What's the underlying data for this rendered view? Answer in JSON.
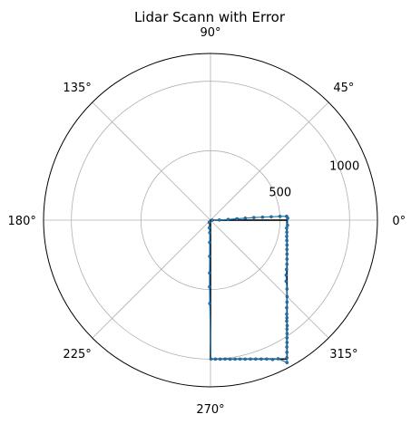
{
  "chart_data": {
    "type": "scatter",
    "projection": "polar",
    "title": "Lidar Scann with Error",
    "angle_unit": "degrees",
    "theta_ticks": [
      0,
      45,
      90,
      135,
      180,
      225,
      270,
      315
    ],
    "theta_tick_labels": [
      "0°",
      "45°",
      "90°",
      "135°",
      "180°",
      "225°",
      "270°",
      "315°"
    ],
    "r_ticks": [
      500,
      1000
    ],
    "r_tick_labels": [
      "500",
      "1000"
    ],
    "rlim": [
      0,
      1200
    ],
    "grid": true,
    "reference_shape": {
      "name": "",
      "color": "#000000",
      "x_range": [
        0,
        550
      ],
      "y_range": [
        -1000,
        0
      ]
    },
    "scan_color": "#1f77b4",
    "scan_points": [
      [
        0.9,
        12
      ],
      [
        1,
        64
      ],
      [
        2.5,
        127
      ],
      [
        3,
        190
      ],
      [
        3.3,
        250
      ],
      [
        3.5,
        312
      ],
      [
        3.3,
        375
      ],
      [
        3.2,
        437
      ],
      [
        3.1,
        500
      ],
      [
        2.9,
        548
      ],
      [
        1.5,
        555
      ],
      [
        -3.8,
        555
      ],
      [
        -6,
        550
      ],
      [
        -9,
        555
      ],
      [
        -12,
        560
      ],
      [
        -15,
        568
      ],
      [
        -18,
        578
      ],
      [
        -21,
        588
      ],
      [
        -24,
        602
      ],
      [
        -27,
        617
      ],
      [
        -30,
        634
      ],
      [
        -33,
        652
      ],
      [
        -36,
        672
      ],
      [
        -39,
        700
      ],
      [
        -42,
        740
      ],
      [
        -45,
        778
      ],
      [
        -47,
        806
      ],
      [
        -49,
        835
      ],
      [
        -51,
        870
      ],
      [
        -52,
        892
      ],
      [
        -53,
        910
      ],
      [
        -54,
        938
      ],
      [
        -55,
        958
      ],
      [
        -56,
        984
      ],
      [
        -57,
        1010
      ],
      [
        -58,
        1038
      ],
      [
        -59,
        1065
      ],
      [
        -60,
        1098
      ],
      [
        -61,
        1132
      ],
      [
        -61.8,
        1163
      ],
      [
        -64,
        1110
      ],
      [
        -66,
        1098
      ],
      [
        -68,
        1078
      ],
      [
        -70,
        1064
      ],
      [
        -72,
        1051
      ],
      [
        -74,
        1040
      ],
      [
        -76,
        1031
      ],
      [
        -78,
        1022
      ],
      [
        -80,
        1016
      ],
      [
        -82,
        1011
      ],
      [
        -84,
        1005
      ],
      [
        -86,
        1003
      ],
      [
        -88,
        1001
      ],
      [
        -89.8,
        1000
      ],
      [
        -90.5,
        600
      ],
      [
        -90.8,
        480
      ],
      [
        -91,
        380
      ],
      [
        -91.3,
        260
      ],
      [
        -92,
        160
      ],
      [
        -93.5,
        90
      ],
      [
        -98,
        55
      ],
      [
        -120,
        18
      ]
    ]
  }
}
